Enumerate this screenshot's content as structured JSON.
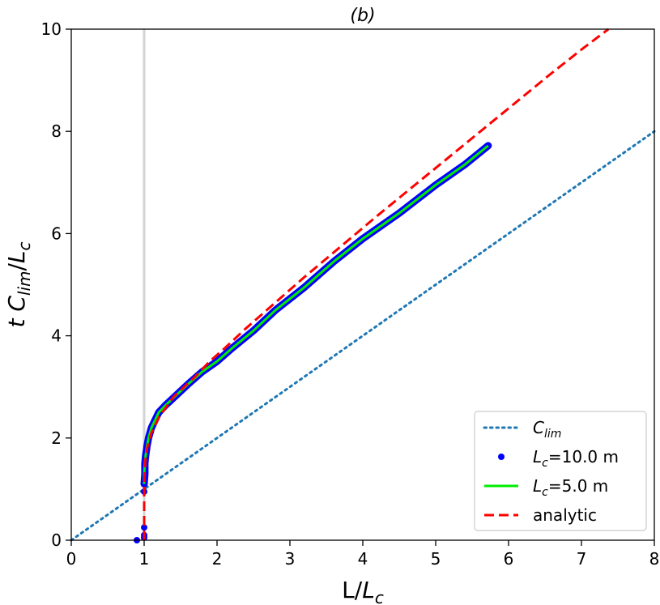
{
  "chart_data": {
    "type": "line",
    "title": "(b)",
    "xlabel": {
      "main": "L/",
      "var": "L",
      "sub": "c"
    },
    "ylabel": {
      "t": "t ",
      "c": "C",
      "c_sub": "lim",
      "sep": "/",
      "l": "L",
      "l_sub": "c"
    },
    "xlim": [
      0,
      8
    ],
    "ylim": [
      0,
      10
    ],
    "xticks": [
      0,
      1,
      2,
      3,
      4,
      5,
      6,
      7,
      8
    ],
    "yticks": [
      0,
      2,
      4,
      6,
      8,
      10
    ],
    "grid": false,
    "reference_vline": {
      "x": 1.0,
      "color": "#d3d3d3"
    },
    "legend_position": "lower-right",
    "series": [
      {
        "id": "clim",
        "legend": {
          "main": "C",
          "sub": "lim",
          "rest": ""
        },
        "style": "dotted",
        "color": "#1f77b4",
        "x": [
          0,
          8
        ],
        "y": [
          0,
          8
        ]
      },
      {
        "id": "lc10",
        "legend": {
          "main": "L",
          "sub": "c",
          "rest": "=10.0 m"
        },
        "style": "markers",
        "color": "#0000ff",
        "x": [
          0.9,
          1.0,
          1.0,
          1.0,
          1.0,
          1.0,
          1.01,
          1.01,
          1.02,
          1.04,
          1.06,
          1.1,
          1.15,
          1.2,
          1.3,
          1.45,
          1.6,
          1.8,
          2.0,
          2.2,
          2.5,
          2.8,
          3.2,
          3.6,
          4.0,
          4.5,
          5.0,
          5.4,
          5.72
        ],
        "y": [
          0.0,
          0.05,
          0.1,
          0.25,
          0.95,
          1.1,
          1.3,
          1.5,
          1.65,
          1.85,
          2.0,
          2.2,
          2.35,
          2.5,
          2.65,
          2.85,
          3.05,
          3.3,
          3.5,
          3.75,
          4.1,
          4.5,
          4.95,
          5.45,
          5.9,
          6.4,
          6.95,
          7.35,
          7.72
        ]
      },
      {
        "id": "lc5",
        "legend": {
          "main": "L",
          "sub": "c",
          "rest": "=5.0 m"
        },
        "style": "solid",
        "color": "#00ee00",
        "x": [
          1.0,
          1.0,
          1.01,
          1.02,
          1.04,
          1.06,
          1.1,
          1.15,
          1.2,
          1.3,
          1.45,
          1.6,
          1.8,
          2.0,
          2.2,
          2.5,
          2.8,
          3.2,
          3.6,
          4.0,
          4.5,
          5.0,
          5.4,
          5.72
        ],
        "y": [
          1.1,
          1.3,
          1.5,
          1.65,
          1.85,
          2.0,
          2.2,
          2.35,
          2.5,
          2.65,
          2.85,
          3.05,
          3.3,
          3.5,
          3.75,
          4.1,
          4.5,
          4.95,
          5.45,
          5.9,
          6.4,
          6.95,
          7.35,
          7.72
        ]
      },
      {
        "id": "analytic",
        "legend": {
          "main": "analytic",
          "sub": "",
          "rest": ""
        },
        "style": "dashed",
        "color": "#ff0000",
        "x": [
          1.0,
          1.0,
          1.0,
          1.01,
          1.02,
          1.04,
          1.07,
          1.1,
          1.15,
          1.2,
          1.3,
          1.4,
          1.55,
          1.7,
          1.9,
          2.1,
          2.4,
          2.8,
          3.2,
          3.7,
          4.2,
          4.8,
          5.4,
          6.0,
          6.6,
          7.0,
          7.37
        ],
        "y": [
          0.0,
          0.6,
          1.1,
          1.4,
          1.6,
          1.8,
          1.95,
          2.1,
          2.25,
          2.4,
          2.6,
          2.8,
          3.0,
          3.2,
          3.5,
          3.75,
          4.15,
          4.65,
          5.15,
          5.75,
          6.35,
          7.05,
          7.75,
          8.45,
          9.15,
          9.6,
          10.0
        ]
      }
    ]
  }
}
